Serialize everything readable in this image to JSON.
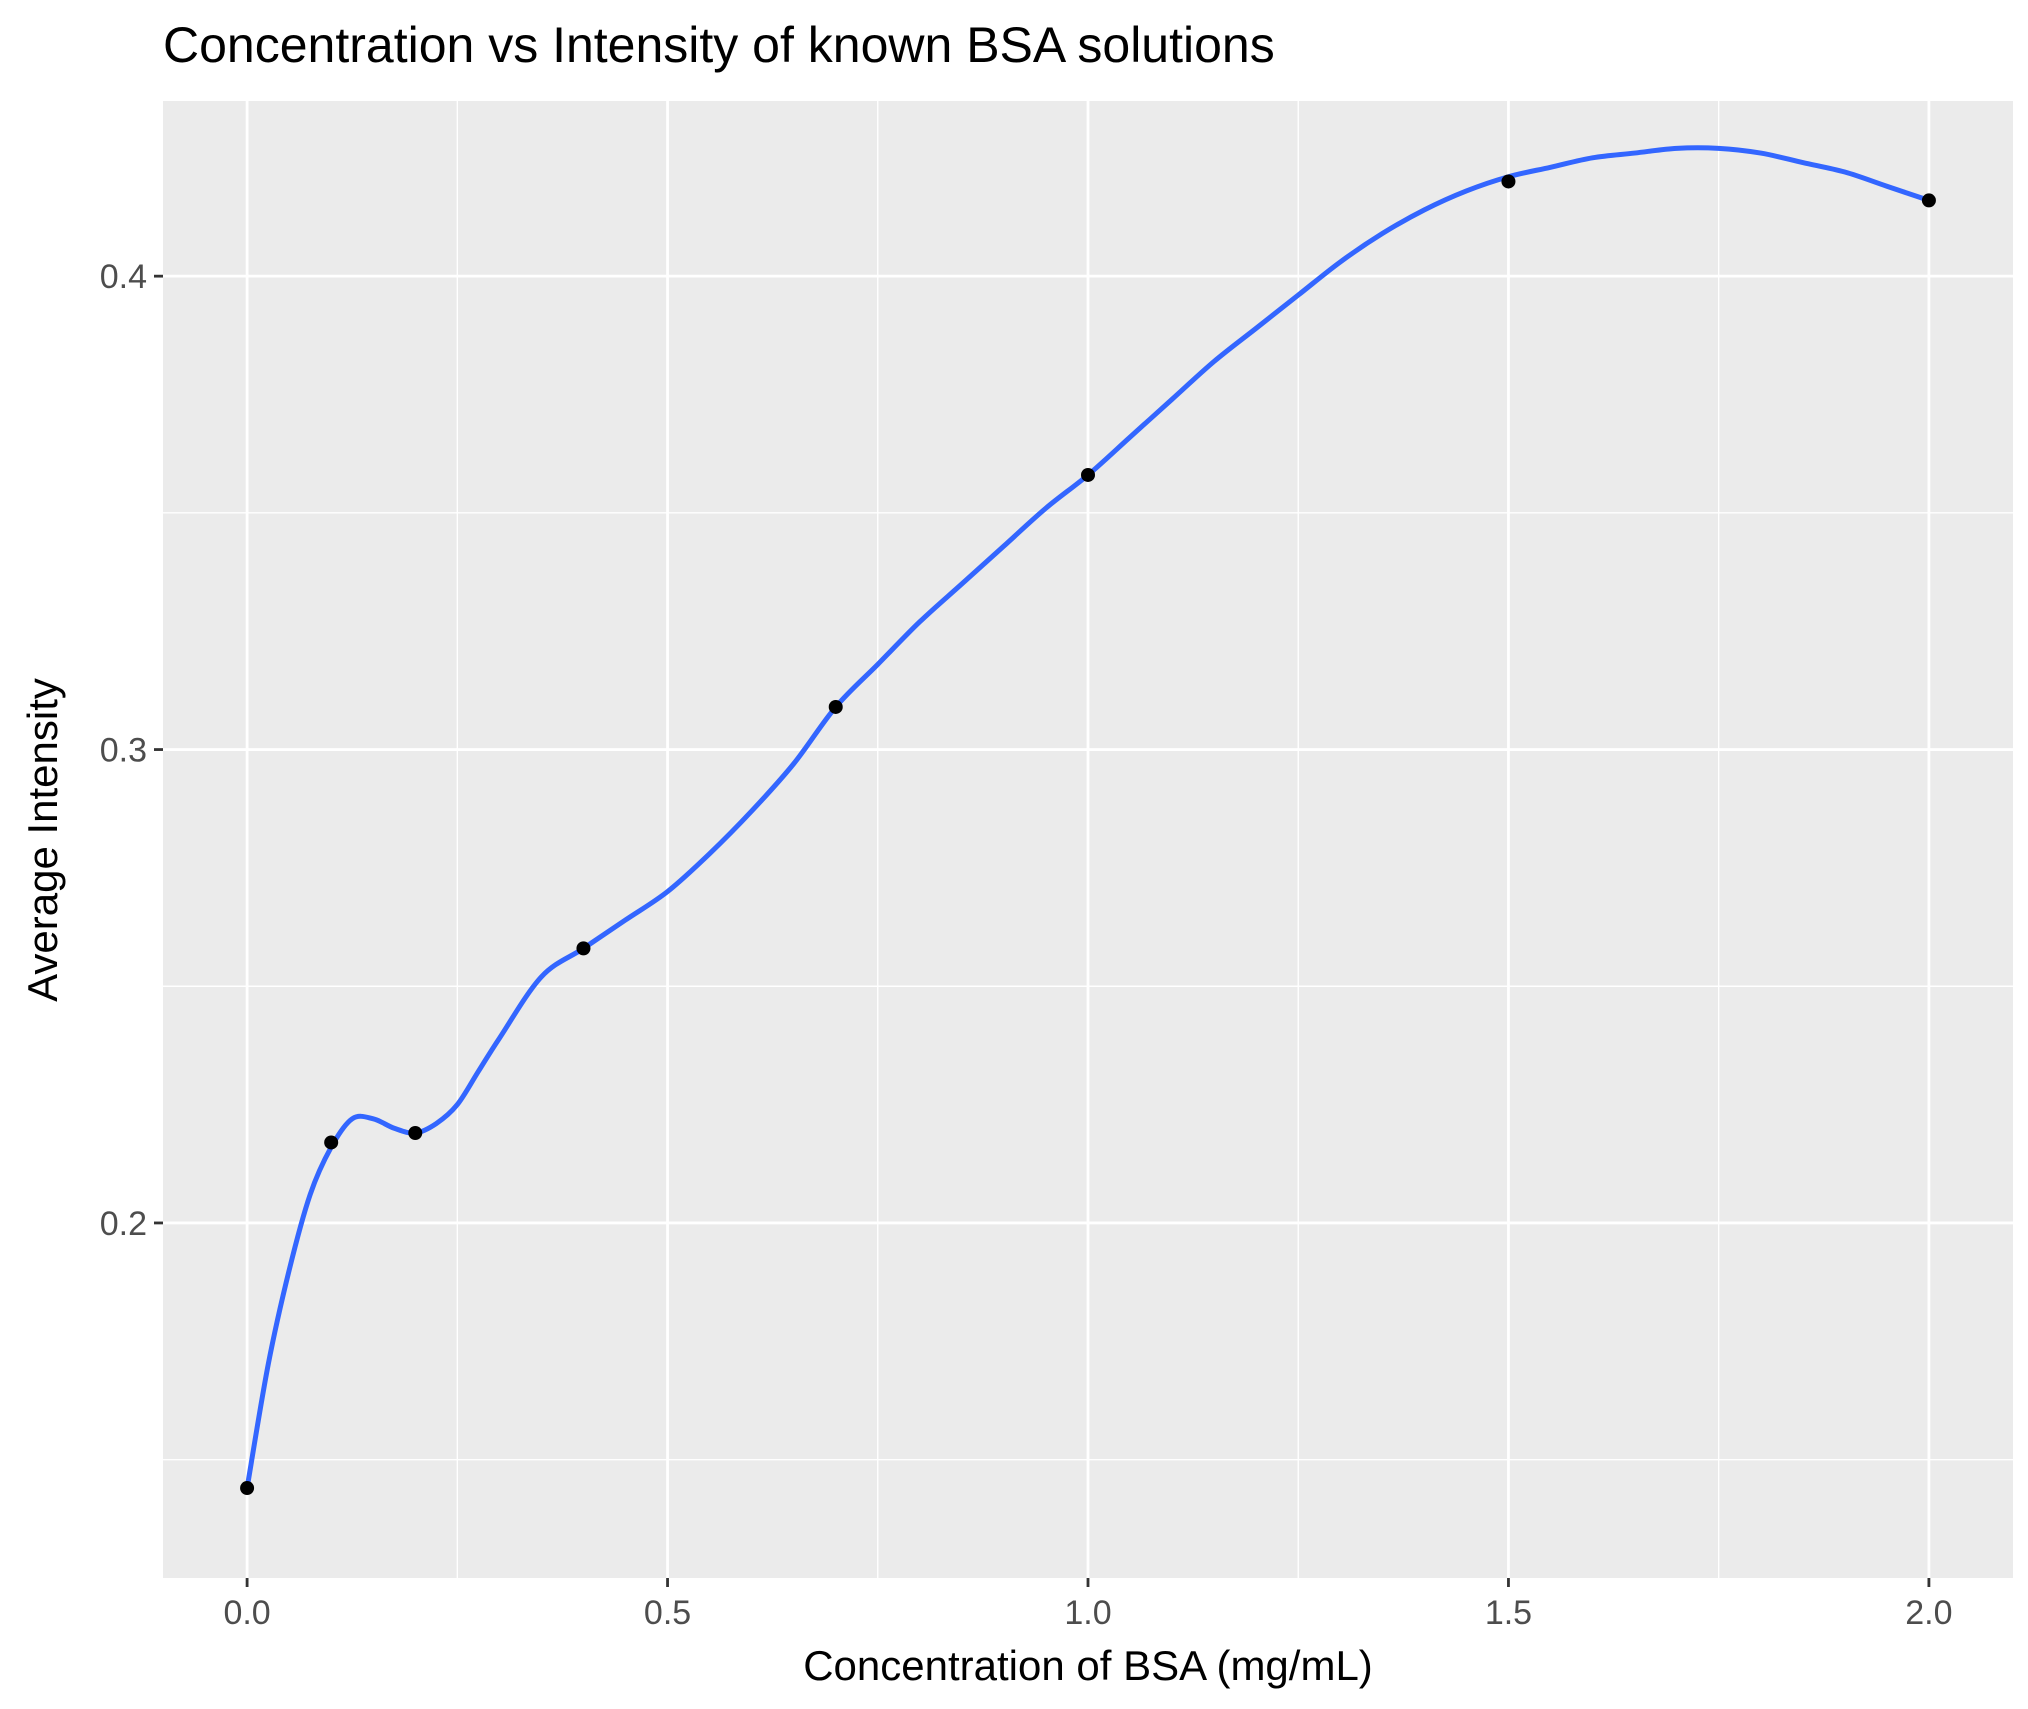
{
  "chart_data": {
    "type": "scatter",
    "title": "Concentration vs Intensity of known BSA solutions",
    "xlabel": "Concentration of BSA (mg/mL)",
    "ylabel": "Average Intensity",
    "xlim": [
      -0.1,
      2.1
    ],
    "ylim": [
      0.125,
      0.437
    ],
    "x_ticks": [
      0.0,
      0.5,
      1.0,
      1.5,
      2.0
    ],
    "x_tick_labels": [
      "0.0",
      "0.5",
      "1.0",
      "1.5",
      "2.0"
    ],
    "y_ticks": [
      0.2,
      0.3,
      0.4
    ],
    "y_tick_labels": [
      "0.2",
      "0.3",
      "0.4"
    ],
    "grid": true,
    "background": "#ebebeb",
    "series": [
      {
        "type": "points",
        "color": "#000000",
        "x": [
          0.0,
          0.1,
          0.2,
          0.4,
          0.7,
          1.0,
          1.5,
          2.0
        ],
        "y": [
          0.144,
          0.217,
          0.219,
          0.258,
          0.309,
          0.358,
          0.42,
          0.416
        ]
      },
      {
        "type": "smooth-line",
        "color": "#3366ff",
        "x": [
          0.0,
          0.025,
          0.05,
          0.075,
          0.1,
          0.125,
          0.15,
          0.175,
          0.2,
          0.225,
          0.25,
          0.275,
          0.3,
          0.35,
          0.4,
          0.45,
          0.5,
          0.55,
          0.6,
          0.65,
          0.7,
          0.75,
          0.8,
          0.85,
          0.9,
          0.95,
          1.0,
          1.05,
          1.1,
          1.15,
          1.2,
          1.25,
          1.3,
          1.35,
          1.4,
          1.45,
          1.5,
          1.55,
          1.6,
          1.65,
          1.7,
          1.75,
          1.8,
          1.85,
          1.9,
          1.95,
          2.0
        ],
        "y": [
          0.144,
          0.17,
          0.19,
          0.206,
          0.216,
          0.222,
          0.222,
          0.22,
          0.219,
          0.221,
          0.225,
          0.232,
          0.239,
          0.252,
          0.258,
          0.264,
          0.27,
          0.278,
          0.287,
          0.297,
          0.309,
          0.318,
          0.327,
          0.335,
          0.343,
          0.351,
          0.358,
          0.366,
          0.374,
          0.382,
          0.389,
          0.396,
          0.403,
          0.409,
          0.414,
          0.418,
          0.421,
          0.423,
          0.425,
          0.426,
          0.427,
          0.427,
          0.426,
          0.424,
          0.422,
          0.419,
          0.416
        ]
      }
    ]
  }
}
